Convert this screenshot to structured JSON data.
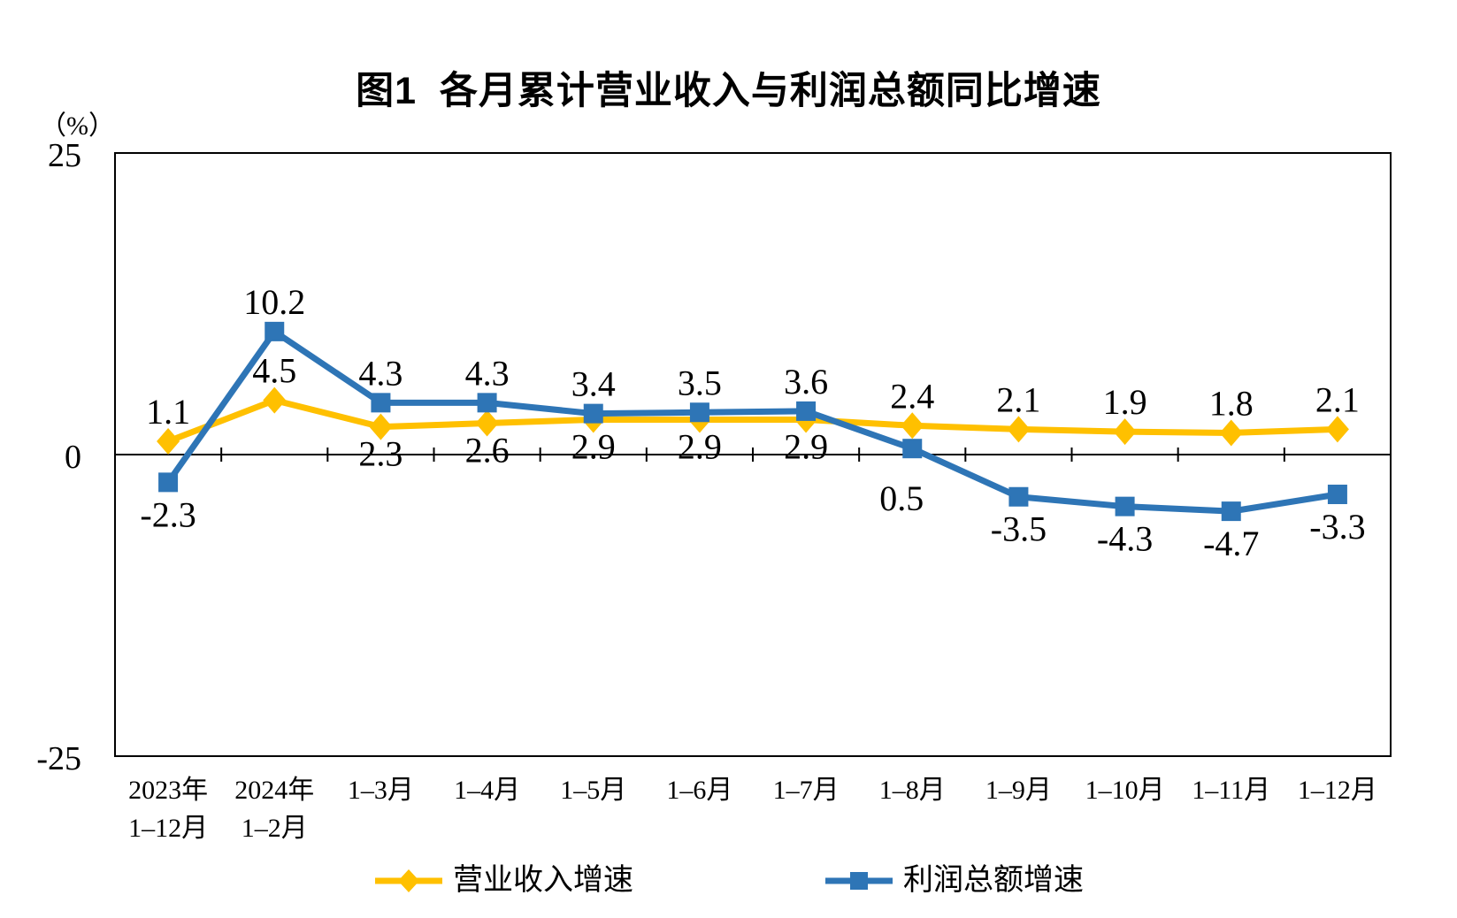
{
  "chart_data": {
    "type": "line",
    "title": "图1  各月累计营业收入与利润总额同比增速",
    "y_axis": {
      "unit": "（%）",
      "min": -25,
      "max": 25,
      "tick_values": [
        25,
        0,
        -25
      ],
      "tick_labels": [
        "25",
        "0",
        "-25"
      ]
    },
    "grid": "off",
    "plot_border": "on",
    "legend_position": "bottom",
    "categories": [
      {
        "line1": "2023年",
        "line2": "1–12月"
      },
      {
        "line1": "2024年",
        "line2": "1–2月"
      },
      {
        "line1": "1–3月",
        "line2": ""
      },
      {
        "line1": "1–4月",
        "line2": ""
      },
      {
        "line1": "1–5月",
        "line2": ""
      },
      {
        "line1": "1–6月",
        "line2": ""
      },
      {
        "line1": "1–7月",
        "line2": ""
      },
      {
        "line1": "1–8月",
        "line2": ""
      },
      {
        "line1": "1–9月",
        "line2": ""
      },
      {
        "line1": "1–10月",
        "line2": ""
      },
      {
        "line1": "1–11月",
        "line2": ""
      },
      {
        "line1": "1–12月",
        "line2": ""
      }
    ],
    "series": [
      {
        "name": "营业收入增速",
        "color": "#FFC000",
        "marker": "diamond",
        "values": [
          1.1,
          4.5,
          2.3,
          2.6,
          2.9,
          2.9,
          2.9,
          2.4,
          2.1,
          1.9,
          1.8,
          2.1
        ],
        "labels": [
          "1.1",
          "4.5",
          "2.3",
          "2.6",
          "2.9",
          "2.9",
          "2.9",
          "2.4",
          "2.1",
          "1.9",
          "1.8",
          "2.1"
        ],
        "label_positions": [
          "above",
          "above",
          "below",
          "below",
          "below",
          "below",
          "below",
          "above",
          "above",
          "above",
          "above",
          "above"
        ]
      },
      {
        "name": "利润总额增速",
        "color": "#2E75B6",
        "marker": "square",
        "values": [
          -2.3,
          10.2,
          4.3,
          4.3,
          3.4,
          3.5,
          3.6,
          0.5,
          -3.5,
          -4.3,
          -4.7,
          -3.3
        ],
        "labels": [
          "-2.3",
          "10.2",
          "4.3",
          "4.3",
          "3.4",
          "3.5",
          "3.6",
          "0.5",
          "-3.5",
          "-4.3",
          "-4.7",
          "-3.3"
        ],
        "label_positions": [
          "below",
          "above",
          "above",
          "above",
          "above",
          "above",
          "above",
          "below-far",
          "below",
          "below",
          "below",
          "below"
        ]
      }
    ]
  }
}
